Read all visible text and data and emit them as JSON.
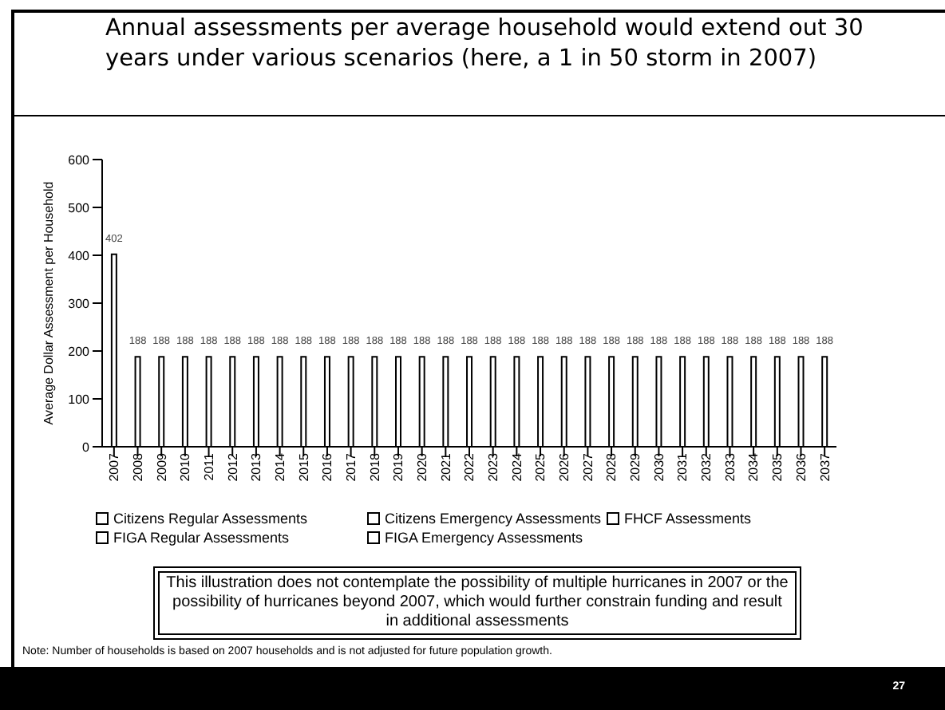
{
  "chart_data": {
    "type": "bar",
    "title": "Annual assessments per average household would extend out 30 years under various scenarios (here, a 1 in 50 storm in 2007)",
    "ylabel": "Average Dollar Assessment per Household",
    "categories": [
      "2007",
      "2008",
      "2009",
      "2010",
      "2011",
      "2012",
      "2013",
      "2014",
      "2015",
      "2016",
      "2017",
      "2018",
      "2019",
      "2020",
      "2021",
      "2022",
      "2023",
      "2024",
      "2025",
      "2026",
      "2027",
      "2028",
      "2029",
      "2030",
      "2031",
      "2032",
      "2033",
      "2034",
      "2035",
      "2036",
      "2037"
    ],
    "stacked": true,
    "series": [
      {
        "name": "Citizens Regular Assessments",
        "color": "#ffffff",
        "values": [
          402,
          188,
          188,
          188,
          188,
          188,
          188,
          188,
          188,
          188,
          188,
          188,
          188,
          188,
          188,
          188,
          188,
          188,
          188,
          188,
          188,
          188,
          188,
          188,
          188,
          188,
          188,
          188,
          188,
          188,
          188
        ]
      },
      {
        "name": "Citizens Emergency Assessments",
        "color": "#ffffff",
        "values": [
          null,
          null,
          null,
          null,
          null,
          null,
          null,
          null,
          null,
          null,
          null,
          null,
          null,
          null,
          null,
          null,
          null,
          null,
          null,
          null,
          null,
          null,
          null,
          null,
          null,
          null,
          null,
          null,
          null,
          null,
          null
        ]
      },
      {
        "name": "FHCF Assessments",
        "color": "#ffffff",
        "values": [
          null,
          null,
          null,
          null,
          null,
          null,
          null,
          null,
          null,
          null,
          null,
          null,
          null,
          null,
          null,
          null,
          null,
          null,
          null,
          null,
          null,
          null,
          null,
          null,
          null,
          null,
          null,
          null,
          null,
          null,
          null
        ]
      },
      {
        "name": "FIGA Regular Assessments",
        "color": "#ffffff",
        "values": [
          null,
          null,
          null,
          null,
          null,
          null,
          null,
          null,
          null,
          null,
          null,
          null,
          null,
          null,
          null,
          null,
          null,
          null,
          null,
          null,
          null,
          null,
          null,
          null,
          null,
          null,
          null,
          null,
          null,
          null,
          null
        ]
      },
      {
        "name": "FIGA Emergency Assessments",
        "color": "#ffffff",
        "values": [
          null,
          null,
          null,
          null,
          null,
          null,
          null,
          null,
          null,
          null,
          null,
          null,
          null,
          null,
          null,
          null,
          null,
          null,
          null,
          null,
          null,
          null,
          null,
          null,
          null,
          null,
          null,
          null,
          null,
          null,
          null
        ]
      }
    ],
    "totals": [
      "402",
      "188",
      "188",
      "188",
      "188",
      "188",
      "188",
      "188",
      "188",
      "188",
      "188",
      "188",
      "188",
      "188",
      "188",
      "188",
      "188",
      "188",
      "188",
      "188",
      "188",
      "188",
      "188",
      "188",
      "188",
      "188",
      "188",
      "188",
      "188",
      "188",
      "188"
    ],
    "ylim": [
      0,
      600
    ],
    "yticks": [
      0,
      100,
      200,
      300,
      400,
      500,
      600
    ],
    "grid": false,
    "legend": "bottom",
    "annotations": [
      "This illustration does not contemplate the possibility of multiple hurricanes in 2007 or the possibility of hurricanes beyond 2007, which would further constrain funding and result in additional assessments",
      "Note: Number of households is based on 2007 households and is not adjusted for future population growth.",
      "27"
    ]
  }
}
